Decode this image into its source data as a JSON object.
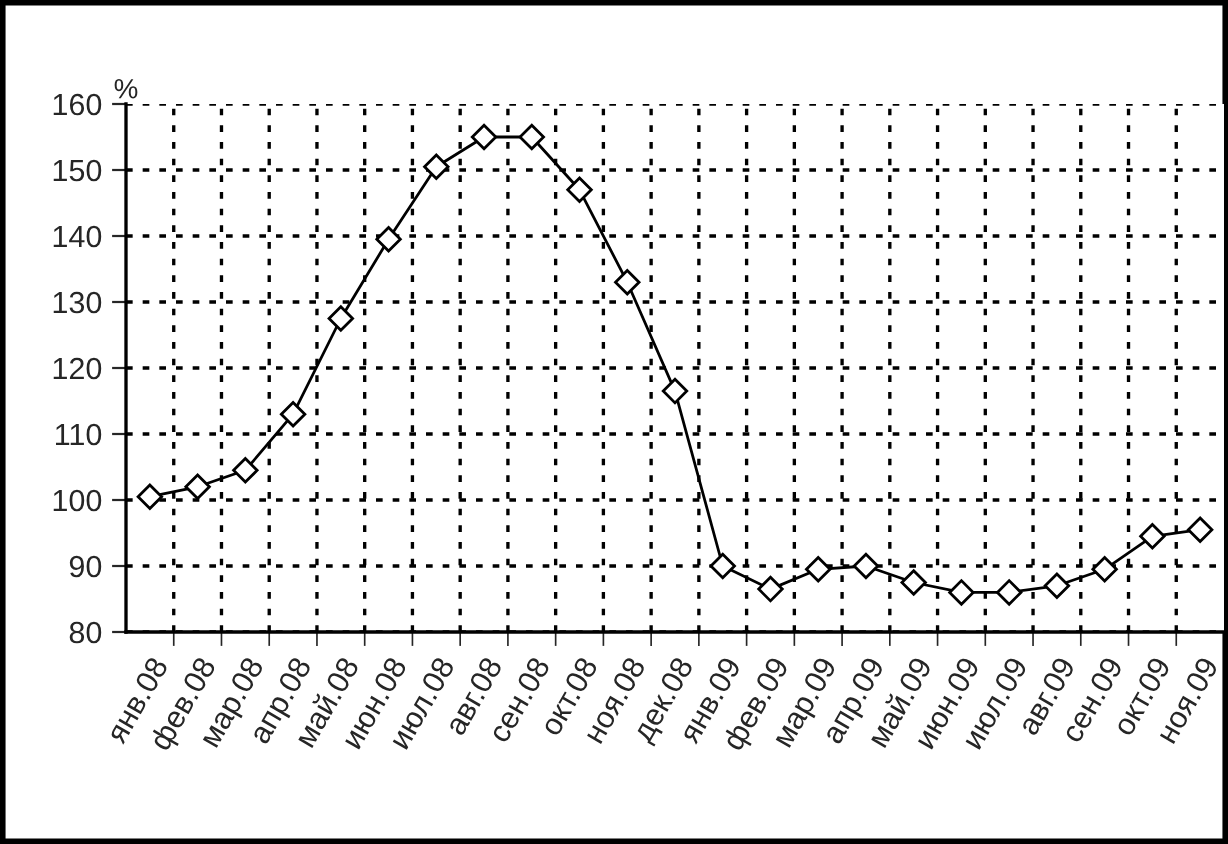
{
  "chart_data": {
    "type": "line",
    "ylabel": "%",
    "categories": [
      "янв.08",
      "фев.08",
      "мар.08",
      "апр.08",
      "май.08",
      "июн.08",
      "июл.08",
      "авг.08",
      "сен.08",
      "окт.08",
      "ноя.08",
      "дек.08",
      "янв.09",
      "фев.09",
      "мар.09",
      "апр.09",
      "май.09",
      "июн.09",
      "июл.09",
      "авг.09",
      "сен.09",
      "окт.09",
      "ноя.09"
    ],
    "series": [
      {
        "color": "#000000",
        "values": [
          100.5,
          102,
          104.5,
          113,
          127.5,
          139.5,
          150.5,
          155,
          155,
          147,
          133,
          116.5,
          90,
          86.5,
          89.5,
          90,
          87.5,
          86,
          86,
          87,
          89.5,
          94.5,
          95.5
        ]
      }
    ],
    "ylim": [
      80,
      160
    ],
    "yticks": [
      80,
      90,
      100,
      110,
      120,
      130,
      140,
      150,
      160
    ],
    "grid": true,
    "marker": "diamond",
    "line_style": "solid"
  }
}
